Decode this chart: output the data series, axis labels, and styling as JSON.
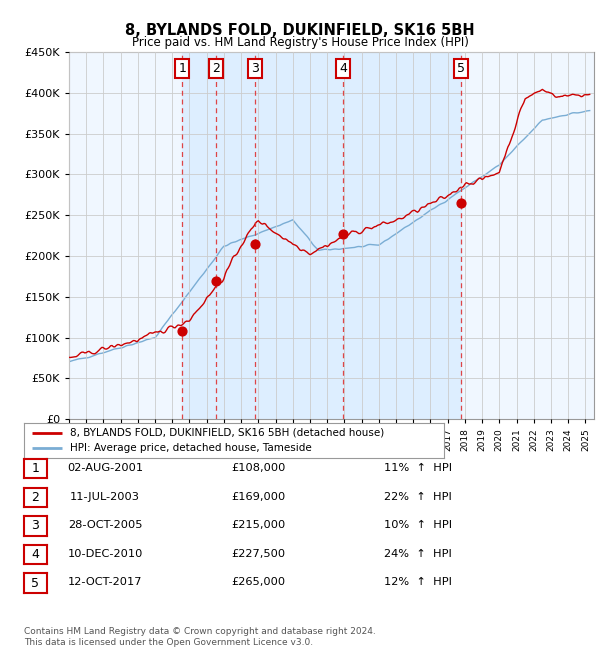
{
  "title": "8, BYLANDS FOLD, DUKINFIELD, SK16 5BH",
  "subtitle": "Price paid vs. HM Land Registry's House Price Index (HPI)",
  "footer": "Contains HM Land Registry data © Crown copyright and database right 2024.\nThis data is licensed under the Open Government Licence v3.0.",
  "legend_property": "8, BYLANDS FOLD, DUKINFIELD, SK16 5BH (detached house)",
  "legend_hpi": "HPI: Average price, detached house, Tameside",
  "ylim": [
    0,
    450000
  ],
  "yticks": [
    0,
    50000,
    100000,
    150000,
    200000,
    250000,
    300000,
    350000,
    400000,
    450000
  ],
  "ytick_labels": [
    "£0",
    "£50K",
    "£100K",
    "£150K",
    "£200K",
    "£250K",
    "£300K",
    "£350K",
    "£400K",
    "£450K"
  ],
  "xlim_start": 1995.0,
  "xlim_end": 2025.5,
  "transactions": [
    {
      "num": 1,
      "date": "02-AUG-2001",
      "price": 108000,
      "hpi_pct": "11%",
      "x": 2001.58
    },
    {
      "num": 2,
      "date": "11-JUL-2003",
      "price": 169000,
      "hpi_pct": "22%",
      "x": 2003.52
    },
    {
      "num": 3,
      "date": "28-OCT-2005",
      "price": 215000,
      "hpi_pct": "10%",
      "x": 2005.82
    },
    {
      "num": 4,
      "date": "10-DEC-2010",
      "price": 227500,
      "hpi_pct": "24%",
      "x": 2010.94
    },
    {
      "num": 5,
      "date": "12-OCT-2017",
      "price": 265000,
      "hpi_pct": "12%",
      "x": 2017.78
    }
  ],
  "property_color": "#cc0000",
  "hpi_color": "#7aadd4",
  "shade_color": "#ddeeff",
  "vline_color": "#dd3333",
  "marker_box_color": "#cc0000",
  "grid_color": "#cccccc",
  "plot_bg": "#f0f7ff"
}
